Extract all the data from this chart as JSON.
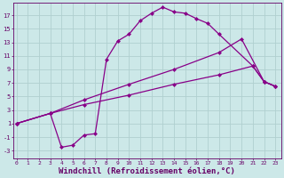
{
  "bg_color": "#cce8e8",
  "grid_color": "#b0d0d0",
  "line_color": "#880088",
  "marker": "D",
  "markersize": 2.5,
  "linewidth": 0.9,
  "xlabel": "Windchill (Refroidissement éolien,°C)",
  "xlabel_fontsize": 6.5,
  "ytick_labels": [
    "-3",
    "-1",
    "1",
    "3",
    "5",
    "7",
    "9",
    "11",
    "13",
    "15",
    "17"
  ],
  "ytick_vals": [
    -3,
    -1,
    1,
    3,
    5,
    7,
    9,
    11,
    13,
    15,
    17
  ],
  "xtick_vals": [
    0,
    1,
    2,
    3,
    4,
    5,
    6,
    7,
    8,
    9,
    10,
    11,
    12,
    13,
    14,
    15,
    16,
    17,
    18,
    19,
    20,
    21,
    22,
    23
  ],
  "xlim": [
    -0.3,
    23.5
  ],
  "ylim": [
    -4.2,
    18.8
  ],
  "line1_x": [
    0,
    3,
    4,
    5,
    6,
    7,
    8,
    9,
    10,
    11,
    12,
    13,
    14,
    15,
    16,
    17,
    18,
    21,
    22,
    23
  ],
  "line1_y": [
    1,
    2.5,
    -2.5,
    -2.2,
    -0.7,
    -0.5,
    10.5,
    13.2,
    14.2,
    16.2,
    17.3,
    18.2,
    17.5,
    17.3,
    16.5,
    15.8,
    14.2,
    9.5,
    7.2,
    6.5
  ],
  "line2_x": [
    0,
    3,
    6,
    10,
    14,
    18,
    20,
    22,
    23
  ],
  "line2_y": [
    1,
    2.5,
    4.5,
    6.8,
    9.0,
    11.5,
    13.5,
    7.2,
    6.5
  ],
  "line3_x": [
    0,
    3,
    6,
    10,
    14,
    18,
    21,
    22,
    23
  ],
  "line3_y": [
    1,
    2.5,
    3.8,
    5.2,
    6.8,
    8.2,
    9.5,
    7.2,
    6.5
  ]
}
